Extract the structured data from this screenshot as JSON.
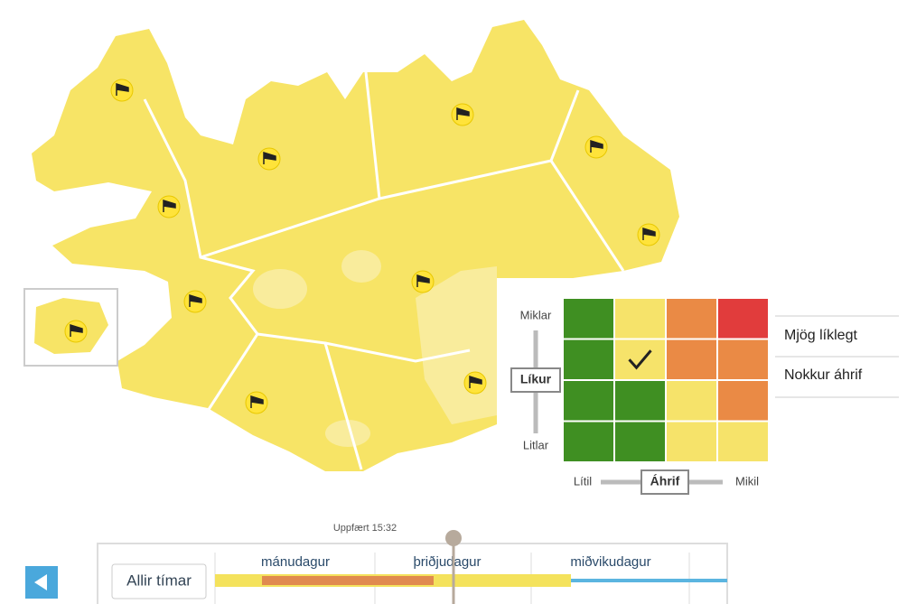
{
  "matrix": {
    "y_high": "Miklar",
    "y_label": "Líkur",
    "y_low": "Litlar",
    "x_low": "Lítil",
    "x_label": "Áhrif",
    "x_high": "Mikil",
    "cells": [
      [
        "#3f8f22",
        "#f6e36a",
        "#ea8a45",
        "#e13c3c"
      ],
      [
        "#3f8f22",
        "#f6e36a",
        "#ea8a45",
        "#ea8a45"
      ],
      [
        "#3f8f22",
        "#3f8f22",
        "#f6e36a",
        "#ea8a45"
      ],
      [
        "#3f8f22",
        "#3f8f22",
        "#f6e36a",
        "#f6e36a"
      ]
    ],
    "selected": {
      "row": 1,
      "col": 1
    }
  },
  "legend": {
    "likelihood": "Mjög líklegt",
    "impact": "Nokkur áhrif"
  },
  "timeline": {
    "updated": "Uppfært 15:32",
    "all_times": "Allir tímar",
    "days": [
      "mánudagur",
      "þriðjudagur",
      "miðvikudagur"
    ]
  }
}
